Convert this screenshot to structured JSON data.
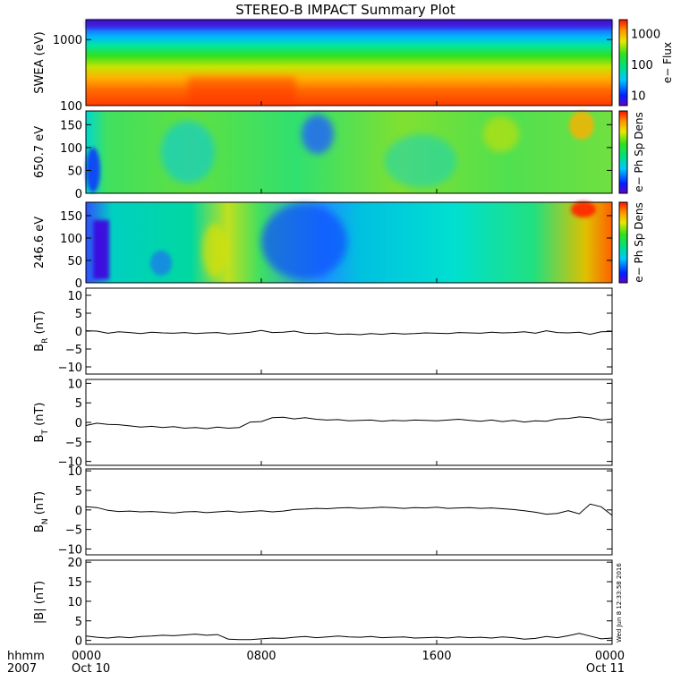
{
  "chart_data": {
    "type": "line",
    "title": "STEREO-B IMPACT Summary Plot",
    "time_axis": {
      "label_line1": "hhmm",
      "label_line2": "2007",
      "ticks": [
        {
          "time": "0000",
          "date": "Oct 10",
          "hour": 0
        },
        {
          "time": "0800",
          "date": "",
          "hour": 8
        },
        {
          "time": "1600",
          "date": "",
          "hour": 16
        },
        {
          "time": "0000",
          "date": "Oct 11",
          "hour": 24
        }
      ],
      "range_hours": [
        0,
        24
      ]
    },
    "timestamp": "Wed Jun  8 12:33:58 2016",
    "panels": [
      {
        "id": "swea",
        "type": "heatmap",
        "ylabel": "SWEA (eV)",
        "yscale": "log",
        "ylim": [
          100,
          2000
        ],
        "yticks": [
          {
            "value": 100,
            "label": "100"
          },
          {
            "value": 1000,
            "label": "1000"
          }
        ],
        "colorbar": {
          "label": "e− Flux",
          "scale": "log",
          "range": [
            5,
            3000
          ],
          "ticks": [
            {
              "value": 10,
              "label": "10"
            },
            {
              "value": 100,
              "label": "100"
            },
            {
              "value": 1000,
              "label": "1000"
            }
          ]
        }
      },
      {
        "id": "pa650",
        "type": "heatmap",
        "ylabel": "650.7 eV",
        "yscale": "linear",
        "ylim": [
          0,
          180
        ],
        "yticks": [
          {
            "value": 0,
            "label": "0"
          },
          {
            "value": 50,
            "label": "50"
          },
          {
            "value": 100,
            "label": "100"
          },
          {
            "value": 150,
            "label": "150"
          }
        ],
        "colorbar": {
          "label": "e− Ph Sp Dens"
        }
      },
      {
        "id": "pa246",
        "type": "heatmap",
        "ylabel": "246.6 eV",
        "yscale": "linear",
        "ylim": [
          0,
          180
        ],
        "yticks": [
          {
            "value": 0,
            "label": "0"
          },
          {
            "value": 50,
            "label": "50"
          },
          {
            "value": 100,
            "label": "100"
          },
          {
            "value": 150,
            "label": "150"
          }
        ],
        "colorbar": {
          "label": "e− Ph Sp Dens"
        }
      },
      {
        "id": "br",
        "type": "line",
        "ylabel_main": "B",
        "ylabel_sub": "R",
        "ylabel_unit": " (nT)",
        "ylim": [
          -12,
          12
        ],
        "yticks": [
          {
            "value": -10,
            "label": "−10"
          },
          {
            "value": -5,
            "label": "−5"
          },
          {
            "value": 0,
            "label": "0"
          },
          {
            "value": 5,
            "label": "5"
          },
          {
            "value": 10,
            "label": "10"
          }
        ],
        "series": [
          {
            "x": [
              0,
              0.5,
              1,
              1.5,
              2,
              2.5,
              3,
              3.5,
              4,
              4.5,
              5,
              5.5,
              6,
              6.5,
              7,
              7.5,
              8,
              8.5,
              9,
              9.5,
              10,
              10.5,
              11,
              11.5,
              12,
              12.5,
              13,
              13.5,
              14,
              14.5,
              15,
              15.5,
              16,
              16.5,
              17,
              17.5,
              18,
              18.5,
              19,
              19.5,
              20,
              20.5,
              21,
              21.5,
              22,
              22.5,
              23,
              23.5,
              24
            ],
            "y": [
              0.1,
              0,
              -0.6,
              -0.2,
              -0.4,
              -0.7,
              -0.3,
              -0.5,
              -0.6,
              -0.4,
              -0.7,
              -0.5,
              -0.4,
              -0.8,
              -0.6,
              -0.3,
              0.2,
              -0.4,
              -0.3,
              0,
              -0.6,
              -0.7,
              -0.5,
              -0.9,
              -0.8,
              -1,
              -0.7,
              -0.9,
              -0.6,
              -0.8,
              -0.7,
              -0.5,
              -0.6,
              -0.7,
              -0.4,
              -0.5,
              -0.6,
              -0.3,
              -0.5,
              -0.4,
              -0.2,
              -0.6,
              0.1,
              -0.4,
              -0.5,
              -0.3,
              -0.9,
              -0.2,
              -0.1
            ]
          }
        ]
      },
      {
        "id": "bt",
        "type": "line",
        "ylabel_main": "B",
        "ylabel_sub": "T",
        "ylabel_unit": " (nT)",
        "ylim": [
          -11,
          11
        ],
        "yticks": [
          {
            "value": -10,
            "label": "−10"
          },
          {
            "value": -5,
            "label": "−5"
          },
          {
            "value": 0,
            "label": "0"
          },
          {
            "value": 5,
            "label": "5"
          },
          {
            "value": 10,
            "label": "10"
          }
        ],
        "series": [
          {
            "x": [
              0,
              0.5,
              1,
              1.5,
              2,
              2.5,
              3,
              3.5,
              4,
              4.5,
              5,
              5.5,
              6,
              6.5,
              7,
              7.5,
              8,
              8.5,
              9,
              9.5,
              10,
              10.5,
              11,
              11.5,
              12,
              12.5,
              13,
              13.5,
              14,
              14.5,
              15,
              15.5,
              16,
              16.5,
              17,
              17.5,
              18,
              18.5,
              19,
              19.5,
              20,
              20.5,
              21,
              21.5,
              22,
              22.5,
              23,
              23.5,
              24
            ],
            "y": [
              -0.8,
              -0.2,
              -0.5,
              -0.6,
              -0.9,
              -1.2,
              -1,
              -1.3,
              -1.1,
              -1.5,
              -1.3,
              -1.6,
              -1.2,
              -1.5,
              -1.3,
              0.1,
              0.2,
              1.2,
              1.3,
              0.9,
              1.2,
              0.8,
              0.6,
              0.7,
              0.4,
              0.5,
              0.6,
              0.3,
              0.5,
              0.4,
              0.6,
              0.5,
              0.4,
              0.6,
              0.8,
              0.5,
              0.3,
              0.6,
              0.2,
              0.5,
              0.1,
              0.4,
              0.3,
              0.9,
              1,
              1.4,
              1.2,
              0.6,
              0.9
            ]
          }
        ]
      },
      {
        "id": "bn",
        "type": "line",
        "ylabel_main": "B",
        "ylabel_sub": "N",
        "ylabel_unit": " (nT)",
        "ylim": [
          -11.5,
          10.5
        ],
        "yticks": [
          {
            "value": -10,
            "label": "−10"
          },
          {
            "value": -5,
            "label": "−5"
          },
          {
            "value": 0,
            "label": "0"
          },
          {
            "value": 5,
            "label": "5"
          },
          {
            "value": 10,
            "label": "10"
          }
        ],
        "series": [
          {
            "x": [
              0,
              0.5,
              1,
              1.5,
              2,
              2.5,
              3,
              3.5,
              4,
              4.5,
              5,
              5.5,
              6,
              6.5,
              7,
              7.5,
              8,
              8.5,
              9,
              9.5,
              10,
              10.5,
              11,
              11.5,
              12,
              12.5,
              13,
              13.5,
              14,
              14.5,
              15,
              15.5,
              16,
              16.5,
              17,
              17.5,
              18,
              18.5,
              19,
              19.5,
              20,
              20.5,
              21,
              21.5,
              22,
              22.5,
              23,
              23.5,
              24
            ],
            "y": [
              0.8,
              0.6,
              -0.1,
              -0.4,
              -0.3,
              -0.5,
              -0.4,
              -0.6,
              -0.8,
              -0.5,
              -0.4,
              -0.7,
              -0.5,
              -0.3,
              -0.6,
              -0.4,
              -0.2,
              -0.5,
              -0.3,
              0.1,
              0.2,
              0.4,
              0.3,
              0.5,
              0.6,
              0.4,
              0.5,
              0.7,
              0.6,
              0.4,
              0.6,
              0.5,
              0.7,
              0.4,
              0.5,
              0.6,
              0.4,
              0.5,
              0.3,
              0.1,
              -0.2,
              -0.6,
              -1.1,
              -0.9,
              -0.2,
              -1,
              1.5,
              0.8,
              -1.4
            ]
          }
        ]
      },
      {
        "id": "bmag",
        "type": "line",
        "ylabel_main": "|B|",
        "ylabel_sub": "",
        "ylabel_unit": " (nT)",
        "ylim": [
          -1,
          20.5
        ],
        "yticks": [
          {
            "value": 0,
            "label": "0"
          },
          {
            "value": 5,
            "label": "5"
          },
          {
            "value": 10,
            "label": "10"
          },
          {
            "value": 15,
            "label": "15"
          },
          {
            "value": 20,
            "label": "20"
          }
        ],
        "series": [
          {
            "x": [
              0,
              0.5,
              1,
              1.5,
              2,
              2.5,
              3,
              3.5,
              4,
              4.5,
              5,
              5.5,
              6,
              6.5,
              7,
              7.5,
              8,
              8.5,
              9,
              9.5,
              10,
              10.5,
              11,
              11.5,
              12,
              12.5,
              13,
              13.5,
              14,
              14.5,
              15,
              15.5,
              16,
              16.5,
              17,
              17.5,
              18,
              18.5,
              19,
              19.5,
              20,
              20.5,
              21,
              21.5,
              22,
              22.5,
              23,
              23.5,
              24
            ],
            "y": [
              1.1,
              0.8,
              0.6,
              0.9,
              0.7,
              1,
              1.1,
              1.3,
              1.2,
              1.4,
              1.6,
              1.3,
              1.5,
              0.3,
              0.2,
              0.2,
              0.4,
              0.6,
              0.5,
              0.8,
              1,
              0.7,
              0.9,
              1.1,
              0.9,
              0.8,
              1,
              0.7,
              0.8,
              0.9,
              0.6,
              0.7,
              0.8,
              0.6,
              0.9,
              0.7,
              0.8,
              0.6,
              0.9,
              0.7,
              0.3,
              0.5,
              1,
              0.7,
              1.2,
              1.8,
              1.1,
              0.4,
              0.6
            ]
          }
        ]
      }
    ]
  }
}
